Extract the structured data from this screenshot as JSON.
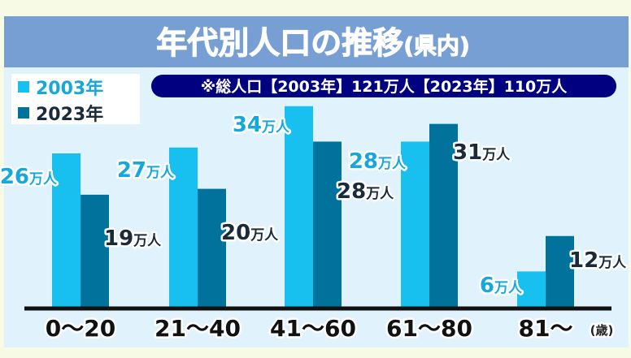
{
  "title": "年代別人口の推移",
  "title_suffix": "(県内)",
  "note": "※総人口【2003年】121万人【2023年】110万人",
  "colors": {
    "title_band": "#789fd4",
    "plot_bg": "#e0f2fb",
    "s2003": "#18c0f0",
    "s2023": "#00729c",
    "note_bg": "#000080",
    "label2003": "#16a8da",
    "label2023": "#1a2a3a"
  },
  "chart_data": {
    "type": "bar",
    "title": "年代別人口の推移(県内)",
    "categories": [
      "0～20",
      "21～40",
      "41～60",
      "61～80",
      "81～"
    ],
    "xlabel": "(歳)",
    "unit": "万人",
    "ylim": [
      0,
      35
    ],
    "grid": false,
    "legend": "top-left",
    "series": [
      {
        "name": "2003年",
        "values": [
          26,
          27,
          34,
          28,
          6
        ]
      },
      {
        "name": "2023年",
        "values": [
          19,
          20,
          28,
          31,
          12
        ]
      }
    ]
  }
}
